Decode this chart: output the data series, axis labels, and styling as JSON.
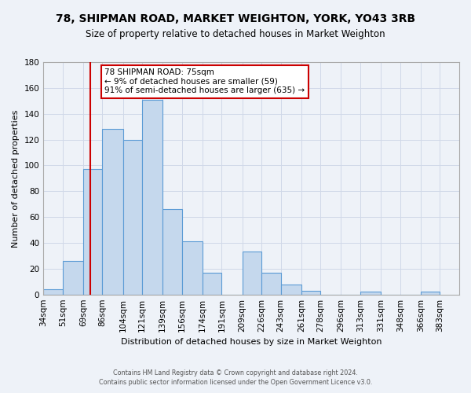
{
  "title1": "78, SHIPMAN ROAD, MARKET WEIGHTON, YORK, YO43 3RB",
  "title2": "Size of property relative to detached houses in Market Weighton",
  "xlabel": "Distribution of detached houses by size in Market Weighton",
  "ylabel": "Number of detached properties",
  "bin_labels": [
    "34sqm",
    "51sqm",
    "69sqm",
    "86sqm",
    "104sqm",
    "121sqm",
    "139sqm",
    "156sqm",
    "174sqm",
    "191sqm",
    "209sqm",
    "226sqm",
    "243sqm",
    "261sqm",
    "278sqm",
    "296sqm",
    "313sqm",
    "331sqm",
    "348sqm",
    "366sqm",
    "383sqm"
  ],
  "bin_edges": [
    34,
    51,
    69,
    86,
    104,
    121,
    139,
    156,
    174,
    191,
    209,
    226,
    243,
    261,
    278,
    296,
    313,
    331,
    348,
    366,
    383
  ],
  "bar_heights": [
    4,
    26,
    97,
    128,
    120,
    151,
    66,
    41,
    17,
    0,
    33,
    17,
    8,
    3,
    0,
    0,
    2,
    0,
    0,
    2,
    0
  ],
  "bar_color": "#c5d8ed",
  "bar_edge_color": "#5b9bd5",
  "grid_color": "#d0d8e8",
  "bg_color": "#eef2f8",
  "vline_x": 75,
  "vline_color": "#cc0000",
  "annotation_text": "78 SHIPMAN ROAD: 75sqm\n← 9% of detached houses are smaller (59)\n91% of semi-detached houses are larger (635) →",
  "annotation_box_color": "#ffffff",
  "annotation_box_edge": "#cc0000",
  "footer1": "Contains HM Land Registry data © Crown copyright and database right 2024.",
  "footer2": "Contains public sector information licensed under the Open Government Licence v3.0.",
  "ylim": [
    0,
    180
  ],
  "yticks": [
    0,
    20,
    40,
    60,
    80,
    100,
    120,
    140,
    160,
    180
  ],
  "title1_fontsize": 10,
  "title2_fontsize": 8.5,
  "xlabel_fontsize": 8,
  "ylabel_fontsize": 8,
  "tick_fontsize": 7.5,
  "footer_fontsize": 5.8
}
